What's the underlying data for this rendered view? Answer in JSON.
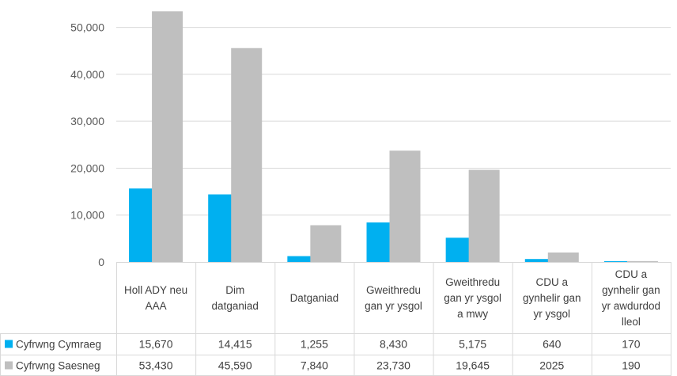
{
  "chart_data": {
    "type": "bar",
    "categories": [
      [
        "Holl ADY neu",
        "AAA"
      ],
      [
        "Dim",
        "datganiad"
      ],
      [
        "Datganiad"
      ],
      [
        "Gweithredu",
        "gan yr ysgol"
      ],
      [
        "Gweithredu",
        "gan yr ysgol",
        "a mwy"
      ],
      [
        "CDU a",
        "gynhelir gan",
        "yr ysgol"
      ],
      [
        "CDU a",
        "gynhelir gan",
        "yr awdurdod",
        "lleol"
      ]
    ],
    "series": [
      {
        "name": "Cyfrwng Cymraeg",
        "color": "#00B0F0",
        "values": [
          15670,
          14415,
          1255,
          8430,
          5175,
          640,
          170
        ],
        "labels": [
          "15,670",
          "14,415",
          "1,255",
          "8,430",
          "5,175",
          "640",
          "170"
        ]
      },
      {
        "name": "Cyfrwng Saesneg",
        "color": "#BFBFBF",
        "values": [
          53430,
          45590,
          7840,
          23730,
          19645,
          2025,
          190
        ],
        "labels": [
          "53,430",
          "45,590",
          "7,840",
          "23,730",
          "19,645",
          "2025",
          "190"
        ]
      }
    ],
    "ylim": [
      0,
      55000
    ],
    "yticks": [
      0,
      10000,
      20000,
      30000,
      40000,
      50000
    ],
    "ytick_labels": [
      "0",
      "10,000",
      "20,000",
      "30,000",
      "40,000",
      "50,000"
    ],
    "grid": true,
    "legend": "data-table"
  }
}
